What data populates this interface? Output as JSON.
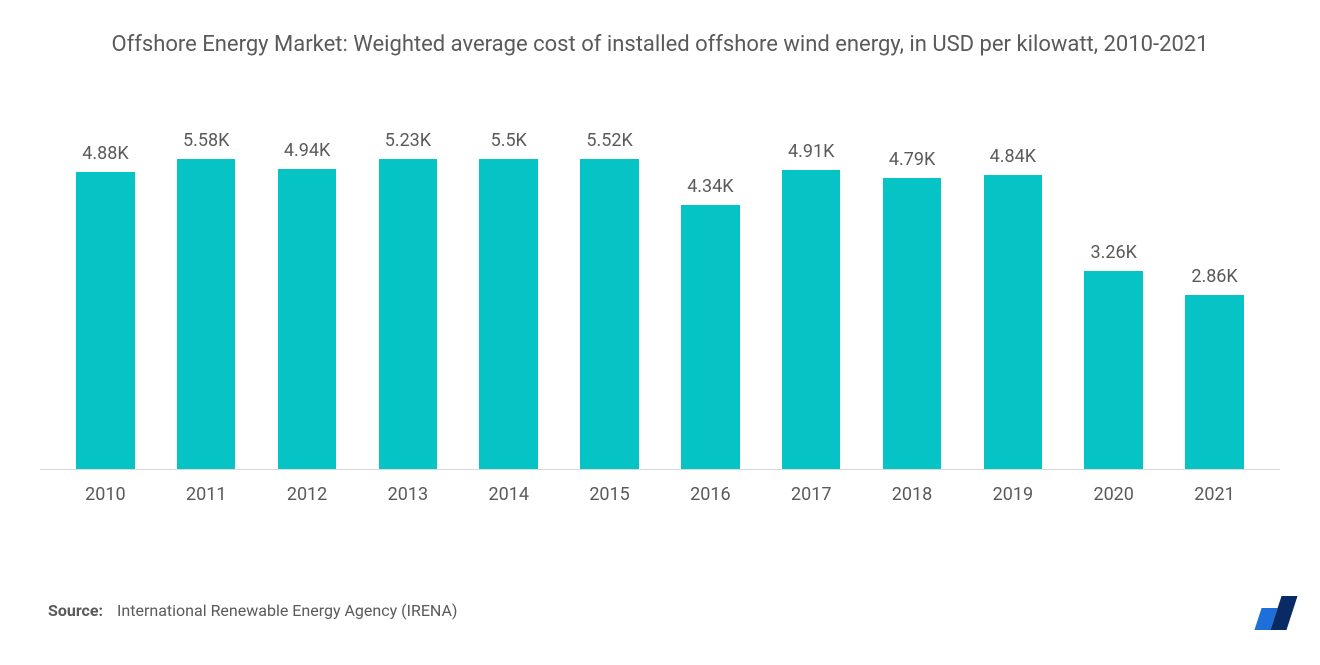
{
  "chart": {
    "type": "bar",
    "title": "Offshore Energy Market: Weighted average cost of installed offshore wind energy, in USD per kilowatt, 2010-2021",
    "title_fontsize": 22,
    "title_color": "#5a5a5a",
    "background_color": "#ffffff",
    "axis_line_color": "#d9d9d9",
    "categories": [
      "2010",
      "2011",
      "2012",
      "2013",
      "2014",
      "2015",
      "2016",
      "2017",
      "2018",
      "2019",
      "2020",
      "2021"
    ],
    "values": [
      4.88,
      5.58,
      4.94,
      5.23,
      5.5,
      5.52,
      4.34,
      4.91,
      4.79,
      4.84,
      3.26,
      2.86
    ],
    "value_labels": [
      "4.88K",
      "5.58K",
      "4.94K",
      "5.23K",
      "5.5K",
      "5.52K",
      "4.34K",
      "4.91K",
      "4.79K",
      "4.84K",
      "3.26K",
      "2.86K"
    ],
    "y_max": 5.58,
    "bar_color": "#06c3c6",
    "bar_width_pct": 58,
    "value_label_fontsize": 18,
    "value_label_color": "#5a5a5a",
    "x_label_fontsize": 18,
    "x_label_color": "#5a5a5a"
  },
  "source": {
    "label": "Source:",
    "text": "International Renewable Energy Agency (IRENA)",
    "fontsize": 16,
    "color": "#5a5a5a"
  },
  "logo": {
    "bar1_color": "#1e6fd9",
    "bar2_color": "#0a2a66"
  }
}
